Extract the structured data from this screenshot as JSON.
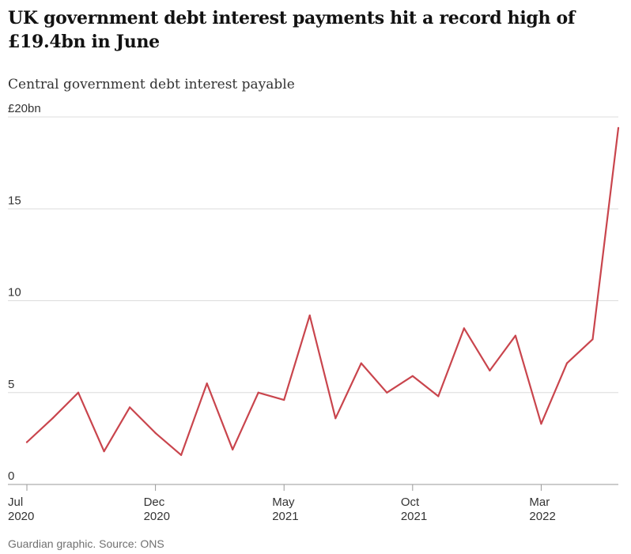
{
  "header": {
    "title": "UK government debt interest payments hit a record high of £19.4bn in June",
    "subtitle": "Central government debt interest payable"
  },
  "footer": {
    "source": "Guardian graphic. Source: ONS"
  },
  "colors": {
    "line": "#c9454d",
    "grid": "#dcdcdc",
    "axis": "#999999"
  },
  "chart_data": {
    "type": "line",
    "title": "UK government debt interest payments hit a record high of £19.4bn in June",
    "subtitle": "Central government debt interest payable",
    "xlabel": "",
    "ylabel": "",
    "ylim": [
      0,
      20
    ],
    "yticks": [
      {
        "value": 0,
        "label": "0"
      },
      {
        "value": 5,
        "label": "5"
      },
      {
        "value": 10,
        "label": "10"
      },
      {
        "value": 15,
        "label": "15"
      },
      {
        "value": 20,
        "label": "£20bn"
      }
    ],
    "xticks": [
      {
        "index": 0,
        "month": "Jul",
        "year": "2020"
      },
      {
        "index": 5,
        "month": "Dec",
        "year": "2020"
      },
      {
        "index": 10,
        "month": "May",
        "year": "2021"
      },
      {
        "index": 15,
        "month": "Oct",
        "year": "2021"
      },
      {
        "index": 20,
        "month": "Mar",
        "year": "2022"
      }
    ],
    "grid": true,
    "x": [
      "2020-07",
      "2020-08",
      "2020-09",
      "2020-10",
      "2020-11",
      "2020-12",
      "2021-01",
      "2021-02",
      "2021-03",
      "2021-04",
      "2021-05",
      "2021-06",
      "2021-07",
      "2021-08",
      "2021-09",
      "2021-10",
      "2021-11",
      "2021-12",
      "2022-01",
      "2022-02",
      "2022-03",
      "2022-04",
      "2022-05",
      "2022-06"
    ],
    "series": [
      {
        "values": [
          2.3,
          3.6,
          5.0,
          1.8,
          4.2,
          2.8,
          1.6,
          5.5,
          1.9,
          5.0,
          4.6,
          9.2,
          3.6,
          6.6,
          5.0,
          5.9,
          4.8,
          8.5,
          6.2,
          8.1,
          3.3,
          6.6,
          7.9,
          19.4
        ]
      }
    ]
  }
}
